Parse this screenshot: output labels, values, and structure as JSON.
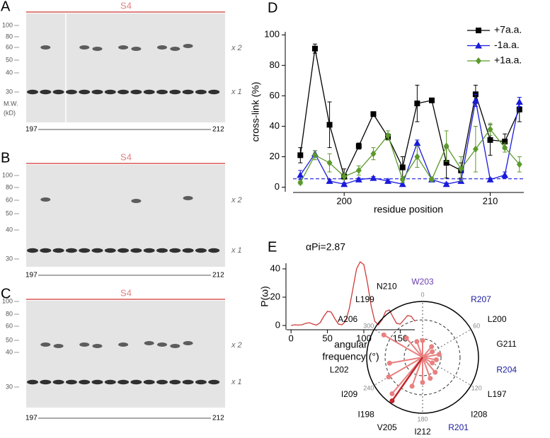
{
  "blots": [
    {
      "letter": "A",
      "header": "S4",
      "mw": [
        100,
        80,
        60,
        50,
        40,
        30
      ],
      "mw_caption": [
        "M.W.",
        "(kD)"
      ],
      "bands": [
        "x 2",
        "x 1"
      ],
      "range": [
        "197",
        "212"
      ]
    },
    {
      "letter": "B",
      "header": "S4",
      "mw": [
        100,
        80,
        60,
        50,
        40,
        30
      ],
      "bands": [
        "x 2",
        "x 1"
      ],
      "range": [
        "197",
        "212"
      ]
    },
    {
      "letter": "C",
      "header": "S4",
      "mw": [
        100,
        80,
        60,
        50,
        40,
        30
      ],
      "bands": [
        "x 2",
        "x 1"
      ],
      "range": [
        "197",
        "212"
      ]
    }
  ],
  "chart_data": [
    {
      "type": "line",
      "letter": "D",
      "ylabel": "cross-link (%)",
      "xlabel": "residue position",
      "x": [
        197,
        198,
        199,
        200,
        201,
        202,
        203,
        204,
        205,
        206,
        207,
        208,
        209,
        210,
        211,
        212
      ],
      "xlim": [
        196.5,
        212.3
      ],
      "xticks": [
        200,
        210
      ],
      "ylim": [
        -3,
        102
      ],
      "yticks": [
        0,
        20,
        40,
        60,
        80,
        100
      ],
      "legend": "top-right",
      "reference_line": 5.5,
      "reference_color": "#1a1adb",
      "series": [
        {
          "name": "+7a.a.",
          "color": "#000000",
          "marker": "square",
          "values": [
            21,
            91,
            41,
            7,
            27,
            48,
            33,
            13,
            55,
            57,
            16,
            11,
            61,
            31,
            30,
            51
          ],
          "errors": [
            5,
            3,
            15,
            5,
            2,
            1,
            2,
            7,
            12,
            1,
            10,
            5,
            6,
            10,
            5,
            8
          ]
        },
        {
          "name": "-1a.a.",
          "color": "#1a1adb",
          "marker": "triangle",
          "values": [
            8,
            22,
            4,
            2,
            5,
            6,
            4,
            2,
            29,
            5,
            2,
            4,
            57,
            5,
            8,
            56
          ],
          "errors": [
            3,
            2,
            1,
            1,
            1,
            1,
            1,
            1,
            2,
            1,
            1,
            1,
            4,
            1,
            2,
            3
          ]
        },
        {
          "name": "+1a.a.",
          "color": "#5a9a2a",
          "marker": "diamond",
          "values": [
            3,
            21,
            16,
            7,
            11,
            22,
            34,
            5,
            20,
            5,
            27,
            12,
            25,
            38,
            26,
            15
          ],
          "errors": [
            1,
            3,
            6,
            2,
            3,
            4,
            3,
            2,
            7,
            1,
            10,
            8,
            15,
            4,
            3,
            5
          ]
        }
      ]
    },
    {
      "type": "line",
      "letter": "E",
      "title": "αPi=2.87",
      "ylabel": "P(ω)",
      "xlabel": [
        "angular",
        "frequency (°)"
      ],
      "x": [
        0,
        5,
        10,
        15,
        20,
        25,
        30,
        35,
        40,
        45,
        50,
        55,
        60,
        65,
        70,
        75,
        80,
        85,
        90,
        95,
        100,
        105,
        110,
        115,
        120,
        125,
        130,
        135,
        140,
        145,
        150,
        155,
        160,
        165,
        170
      ],
      "xlim": [
        -6,
        170
      ],
      "xticks": [
        0,
        50,
        100,
        150
      ],
      "ylim": [
        -3,
        44
      ],
      "yticks": [
        0,
        20,
        40
      ],
      "series": [
        {
          "color": "#d03a3a",
          "values": [
            0,
            0.5,
            0.3,
            0.5,
            1.5,
            2,
            1,
            0.3,
            2,
            6.5,
            10,
            9.5,
            5,
            1,
            0.5,
            3,
            12,
            26,
            40,
            45,
            43,
            30,
            14,
            3,
            0.5,
            4,
            10,
            11,
            6,
            1.5,
            1,
            4,
            7,
            6.5,
            3
          ]
        }
      ]
    },
    {
      "type": "polar",
      "color": "#e88080",
      "labels": [
        "L197",
        "I198",
        "L199",
        "L200",
        "R201",
        "L202",
        "W203",
        "R204",
        "V205",
        "A206",
        "R207",
        "I208",
        "I209",
        "N210",
        "G211",
        "I212"
      ],
      "label_colors": [
        "#000000",
        "#000000",
        "#000000",
        "#000000",
        "#1a1aa0",
        "#000000",
        "#6a3fb0",
        "#1a1aa0",
        "#000000",
        "#000000",
        "#1a1aa0",
        "#000000",
        "#000000",
        "#000000",
        "#000000",
        "#000000"
      ],
      "theta": [
        120,
        220,
        320,
        60,
        160,
        260,
        0,
        100,
        200,
        300,
        40,
        140,
        240,
        340,
        80,
        180
      ],
      "r": [
        20,
        85,
        45,
        20,
        40,
        60,
        30,
        25,
        55,
        80,
        25,
        35,
        70,
        30,
        30,
        45
      ],
      "rlim": [
        0,
        100
      ],
      "rgrid": [
        33,
        67
      ],
      "thetaticks": [
        0,
        60,
        120,
        180,
        240,
        300
      ],
      "resultant": {
        "theta": 215,
        "r": 95,
        "color": "#c0282d"
      }
    }
  ]
}
